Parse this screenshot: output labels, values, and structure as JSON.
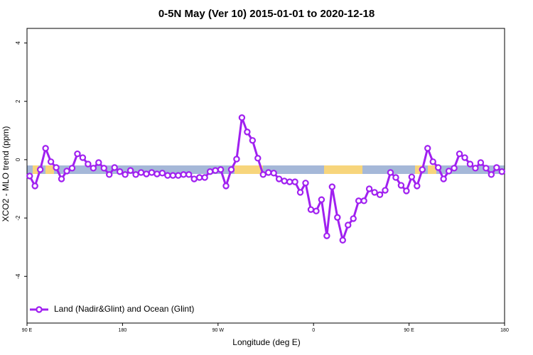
{
  "chart_data": {
    "type": "line",
    "title": "0-5N May (Ver 10)   2015-01-01 to 2020-12-18",
    "x_label": "Longitude (deg E)",
    "y_label": "XCO2 - MLO trend (ppm)",
    "xlim": [
      90,
      540
    ],
    "xticks": [
      {
        "value": 90,
        "label": "90 E"
      },
      {
        "value": 180,
        "label": "180"
      },
      {
        "value": 270,
        "label": "90 W"
      },
      {
        "value": 360,
        "label": "0"
      },
      {
        "value": 450,
        "label": "90 E"
      },
      {
        "value": 540,
        "label": "180"
      }
    ],
    "ylim": [
      -5.6,
      4.5
    ],
    "yticks": [
      -4,
      -2,
      0,
      2,
      4
    ],
    "legend": "bottomleft",
    "series": [
      {
        "name": "Land (Nadir&Glint) and Ocean (Glint)",
        "color": "#a020f0",
        "x": [
          92.5,
          97.5,
          102.5,
          107.5,
          112.5,
          117.5,
          122.5,
          127.5,
          132.5,
          137.5,
          142.5,
          147.5,
          152.5,
          157.5,
          162.5,
          167.5,
          172.5,
          177.5,
          182.5,
          187.5,
          192.5,
          197.5,
          202.5,
          207.5,
          212.5,
          217.5,
          222.5,
          227.5,
          232.5,
          237.5,
          242.5,
          247.5,
          252.5,
          257.5,
          262.5,
          267.5,
          272.5,
          277.5,
          282.5,
          287.5,
          292.5,
          297.5,
          302.5,
          307.5,
          312.5,
          317.5,
          322.5,
          327.5,
          332.5,
          337.5,
          342.5,
          347.5,
          352.5,
          357.5,
          362.5,
          367.5,
          372.5,
          377.5,
          382.5,
          387.5,
          392.5,
          397.5,
          402.5,
          407.5,
          412.5,
          417.5,
          422.5,
          427.5,
          432.5,
          437.5,
          442.5,
          447.5,
          452.5,
          457.5,
          462.5,
          467.5,
          472.5,
          477.5,
          482.5,
          487.5,
          492.5,
          497.5,
          502.5,
          507.5,
          512.5,
          517.5,
          522.5,
          527.5,
          532.5,
          537.5
        ],
        "values": [
          -0.56,
          -0.9,
          -0.34,
          0.39,
          -0.07,
          -0.27,
          -0.66,
          -0.39,
          -0.29,
          0.2,
          0.07,
          -0.15,
          -0.29,
          -0.1,
          -0.29,
          -0.51,
          -0.27,
          -0.41,
          -0.51,
          -0.37,
          -0.51,
          -0.44,
          -0.49,
          -0.44,
          -0.49,
          -0.46,
          -0.54,
          -0.54,
          -0.54,
          -0.51,
          -0.51,
          -0.66,
          -0.61,
          -0.61,
          -0.41,
          -0.37,
          -0.34,
          -0.9,
          -0.34,
          0.02,
          1.44,
          0.95,
          0.66,
          0.05,
          -0.51,
          -0.44,
          -0.46,
          -0.66,
          -0.73,
          -0.76,
          -0.76,
          -1.12,
          -0.8,
          -1.71,
          -1.76,
          -1.37,
          -2.61,
          -0.93,
          -1.98,
          -2.76,
          -2.24,
          -2.02,
          -1.41,
          -1.41,
          -1.0,
          -1.12,
          -1.2,
          -1.05,
          -0.44,
          -0.61,
          -0.88,
          -1.07,
          -0.59,
          -0.9,
          -0.34,
          0.39,
          -0.07,
          -0.27,
          -0.66,
          -0.39,
          -0.29,
          0.2,
          0.07,
          -0.15,
          -0.29,
          -0.1,
          -0.29,
          -0.51,
          -0.27,
          -0.41
        ]
      }
    ]
  }
}
